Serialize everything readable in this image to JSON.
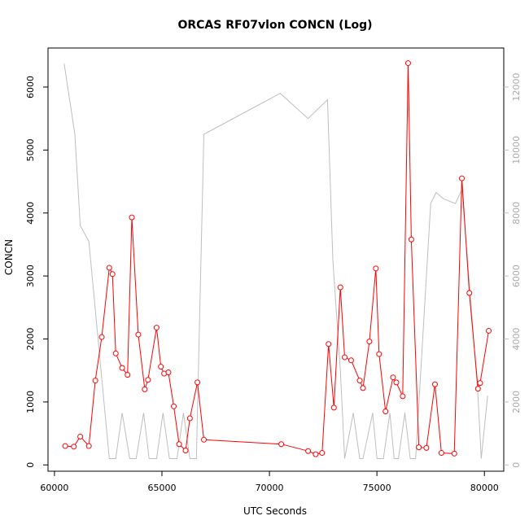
{
  "chart_data": {
    "type": "line",
    "title": "ORCAS RF07vlon CONCN (Log)",
    "xlabel": "UTC Seconds",
    "ylabel": "CONCN",
    "xlim": [
      59700,
      80900
    ],
    "ylim": [
      -100,
      6620
    ],
    "ylim_right": [
      -200,
      13240
    ],
    "x_ticks": [
      60000,
      65000,
      70000,
      75000,
      80000
    ],
    "y_ticks": [
      0,
      1000,
      2000,
      3000,
      4000,
      5000,
      6000
    ],
    "y_ticks_right": [
      0,
      2000,
      4000,
      6000,
      8000,
      10000,
      12000
    ],
    "colors": {
      "concn": "#ff0000",
      "altitude": "#bebebe",
      "frame": "#000000",
      "right_axis": "#bebebe"
    },
    "series": [
      {
        "axis": "left",
        "marker": "circle",
        "x": [
          60500,
          60900,
          61200,
          61600,
          61900,
          62200,
          62550,
          62700,
          62850,
          63150,
          63400,
          63600,
          63900,
          64200,
          64350,
          64750,
          64950,
          65100,
          65300,
          65550,
          65800,
          66100,
          66300,
          66650,
          66950,
          70550,
          71800,
          72150,
          72450,
          72750,
          73000,
          73300,
          73500,
          73800,
          74200,
          74350,
          74650,
          74950,
          75100,
          75400,
          75750,
          75900,
          76200,
          76450,
          76600,
          76950,
          77300,
          77700,
          78000,
          78600,
          78950,
          79300,
          79700,
          79800,
          80200
        ],
        "y": [
          300,
          290,
          450,
          300,
          1340,
          2030,
          3130,
          3030,
          1770,
          1540,
          1430,
          3930,
          2070,
          1200,
          1350,
          2180,
          1560,
          1450,
          1470,
          930,
          330,
          230,
          740,
          1310,
          400,
          330,
          220,
          170,
          190,
          1920,
          910,
          2820,
          1710,
          1660,
          1340,
          1220,
          1960,
          3120,
          1760,
          850,
          1390,
          1310,
          1090,
          6380,
          3580,
          280,
          270,
          1280,
          190,
          180,
          4550,
          2730,
          1210,
          1300,
          2130
        ]
      },
      {
        "axis": "right",
        "marker": "none",
        "x": [
          60450,
          60950,
          61200,
          61600,
          62550,
          62850,
          63150,
          63500,
          63800,
          64150,
          64400,
          64750,
          65050,
          65350,
          65700,
          66000,
          66300,
          66600,
          66950,
          70500,
          71800,
          72700,
          72950,
          73300,
          73500,
          73900,
          74200,
          74350,
          74800,
          75000,
          75300,
          75600,
          75800,
          76000,
          76300,
          76550,
          76800,
          77500,
          77750,
          78100,
          78650,
          78950,
          79300,
          79700,
          79850,
          80150
        ],
        "y": [
          12750,
          10500,
          7600,
          7100,
          200,
          200,
          1650,
          200,
          200,
          1650,
          200,
          200,
          1650,
          200,
          200,
          1650,
          200,
          200,
          10500,
          11800,
          11000,
          11600,
          6500,
          3000,
          200,
          1650,
          200,
          200,
          1650,
          200,
          200,
          1650,
          200,
          200,
          1650,
          200,
          200,
          8300,
          8650,
          8450,
          8300,
          8750,
          5800,
          2200,
          200,
          2200
        ]
      }
    ]
  }
}
